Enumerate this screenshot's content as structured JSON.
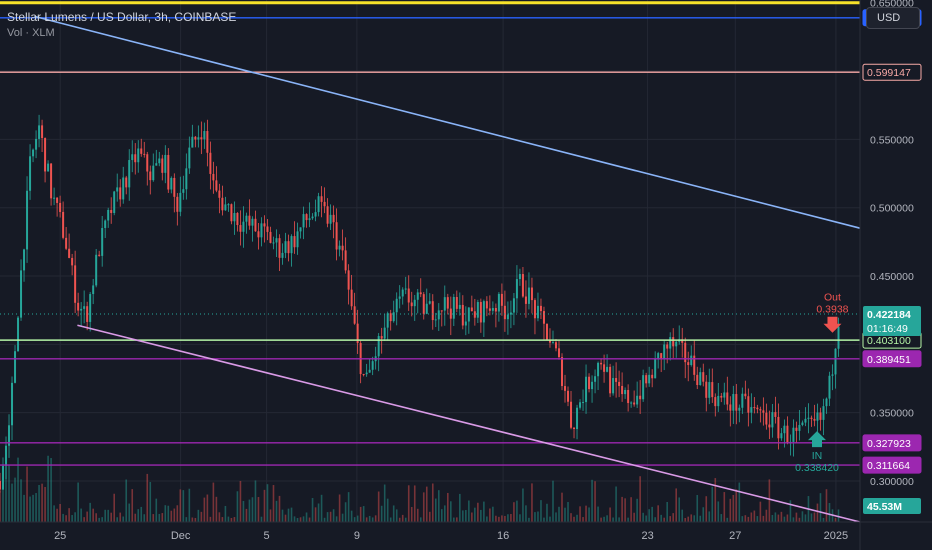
{
  "header": {
    "title": "Stellar Lumens / US Dollar, 3h, COINBASE",
    "indicator": "Vol · XLM"
  },
  "currency_button": "USD",
  "colors": {
    "background": "#161a25",
    "up": "#26a69a",
    "down": "#ef5350",
    "resistance_top": "#f7e22a",
    "blue_level": "#2962ff",
    "salmon_level": "#f7a9a6",
    "purple_level": "#9c27b0",
    "green_level": "#b5f5a6",
    "trend_upper": "#8ab4f8",
    "trend_lower": "#d99ae6"
  },
  "chart_data": {
    "type": "candlestick",
    "symbol": "XLM/USD",
    "interval": "3h",
    "exchange": "COINBASE",
    "ylim": [
      0.27,
      0.652
    ],
    "y_ticks": [
      "0.650000",
      "0.550000",
      "0.500000",
      "0.450000",
      "0.350000",
      "0.300000"
    ],
    "x_ticks": [
      "25",
      "Dec",
      "5",
      "9",
      "16",
      "23",
      "27",
      "2025"
    ],
    "x_tick_pos": [
      0.07,
      0.21,
      0.31,
      0.415,
      0.585,
      0.753,
      0.855,
      0.972
    ],
    "last_price": "0.422184",
    "countdown": "01:16:49",
    "price_path": [
      [
        0.0,
        0.3
      ],
      [
        0.01,
        0.33
      ],
      [
        0.02,
        0.42
      ],
      [
        0.035,
        0.53
      ],
      [
        0.045,
        0.56
      ],
      [
        0.06,
        0.51
      ],
      [
        0.075,
        0.48
      ],
      [
        0.09,
        0.43
      ],
      [
        0.1,
        0.42
      ],
      [
        0.115,
        0.47
      ],
      [
        0.13,
        0.5
      ],
      [
        0.145,
        0.52
      ],
      [
        0.16,
        0.54
      ],
      [
        0.175,
        0.525
      ],
      [
        0.19,
        0.535
      ],
      [
        0.205,
        0.5
      ],
      [
        0.22,
        0.54
      ],
      [
        0.235,
        0.56
      ],
      [
        0.25,
        0.51
      ],
      [
        0.265,
        0.5
      ],
      [
        0.28,
        0.49
      ],
      [
        0.295,
        0.485
      ],
      [
        0.31,
        0.48
      ],
      [
        0.325,
        0.47
      ],
      [
        0.34,
        0.475
      ],
      [
        0.355,
        0.49
      ],
      [
        0.37,
        0.5
      ],
      [
        0.385,
        0.49
      ],
      [
        0.4,
        0.46
      ],
      [
        0.415,
        0.4
      ],
      [
        0.425,
        0.37
      ],
      [
        0.44,
        0.4
      ],
      [
        0.455,
        0.42
      ],
      [
        0.47,
        0.435
      ],
      [
        0.485,
        0.43
      ],
      [
        0.5,
        0.425
      ],
      [
        0.515,
        0.43
      ],
      [
        0.53,
        0.425
      ],
      [
        0.545,
        0.42
      ],
      [
        0.56,
        0.425
      ],
      [
        0.575,
        0.43
      ],
      [
        0.59,
        0.425
      ],
      [
        0.605,
        0.445
      ],
      [
        0.615,
        0.435
      ],
      [
        0.625,
        0.42
      ],
      [
        0.635,
        0.41
      ],
      [
        0.645,
        0.395
      ],
      [
        0.655,
        0.375
      ],
      [
        0.665,
        0.34
      ],
      [
        0.675,
        0.36
      ],
      [
        0.69,
        0.38
      ],
      [
        0.7,
        0.39
      ],
      [
        0.71,
        0.37
      ],
      [
        0.725,
        0.36
      ],
      [
        0.74,
        0.362
      ],
      [
        0.755,
        0.375
      ],
      [
        0.77,
        0.395
      ],
      [
        0.78,
        0.4
      ],
      [
        0.79,
        0.395
      ],
      [
        0.805,
        0.385
      ],
      [
        0.82,
        0.37
      ],
      [
        0.835,
        0.36
      ],
      [
        0.85,
        0.357
      ],
      [
        0.865,
        0.355
      ],
      [
        0.88,
        0.35
      ],
      [
        0.895,
        0.345
      ],
      [
        0.91,
        0.335
      ],
      [
        0.925,
        0.333
      ],
      [
        0.94,
        0.338
      ],
      [
        0.955,
        0.345
      ],
      [
        0.965,
        0.37
      ],
      [
        0.975,
        0.422
      ]
    ],
    "price_levels": [
      {
        "price": 0.65,
        "label": "",
        "color_key": "resistance_top"
      },
      {
        "price": 0.63898,
        "label": "0.638980",
        "color_key": "blue_level"
      },
      {
        "price": 0.599147,
        "label": "0.599147",
        "color_key": "salmon_level"
      },
      {
        "price": 0.4031,
        "label": "0.403100",
        "color_key": "green_level"
      },
      {
        "price": 0.389451,
        "label": "0.389451",
        "color_key": "purple_level"
      },
      {
        "price": 0.327923,
        "label": "0.327923",
        "color_key": "purple_level"
      },
      {
        "price": 0.311664,
        "label": "0.311664",
        "color_key": "purple_level"
      }
    ],
    "trendlines": [
      {
        "name": "upper-trendline",
        "from": [
          0.04,
          0.64
        ],
        "to": [
          1.0,
          0.485
        ],
        "color_key": "trend_upper"
      },
      {
        "name": "lower-trendline",
        "from": [
          0.09,
          0.414
        ],
        "to": [
          1.0,
          0.27
        ],
        "color_key": "trend_lower"
      }
    ],
    "annotations": [
      {
        "name": "out-signal",
        "text": "Out",
        "value": "0.3938",
        "x": 0.968,
        "price": 0.41,
        "color_key": "down",
        "direction": "down"
      },
      {
        "name": "in-signal",
        "text": "IN",
        "value": "0.338420",
        "x": 0.95,
        "price": 0.338,
        "color_key": "up",
        "direction": "up"
      }
    ],
    "volume_label": "45.53M",
    "grid": true,
    "legend": "none"
  }
}
